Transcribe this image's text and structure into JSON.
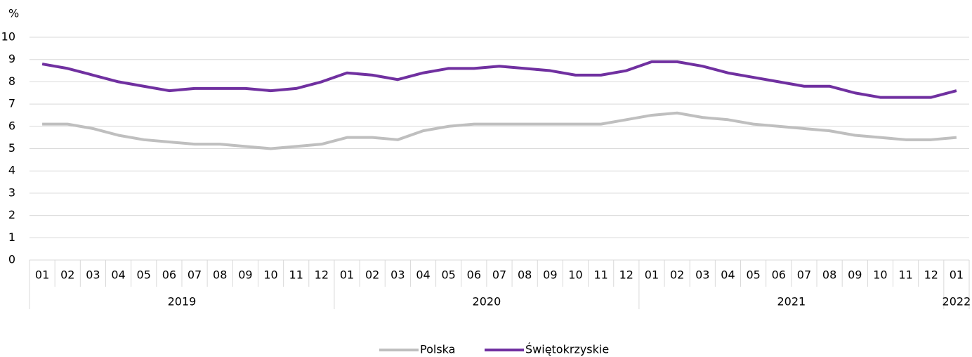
{
  "chart_data": {
    "type": "line",
    "ylabel": "%",
    "categories": [
      "01",
      "02",
      "03",
      "04",
      "05",
      "06",
      "07",
      "08",
      "09",
      "10",
      "11",
      "12",
      "01",
      "02",
      "03",
      "04",
      "05",
      "06",
      "07",
      "08",
      "09",
      "10",
      "11",
      "12",
      "01",
      "02",
      "03",
      "04",
      "05",
      "06",
      "07",
      "08",
      "09",
      "10",
      "11",
      "12",
      "01"
    ],
    "category_groups": [
      "2019",
      null,
      null,
      null,
      null,
      null,
      null,
      null,
      null,
      null,
      null,
      null,
      "2020",
      null,
      null,
      null,
      null,
      null,
      null,
      null,
      null,
      null,
      null,
      null,
      "2021",
      null,
      null,
      null,
      null,
      null,
      null,
      null,
      null,
      null,
      null,
      null,
      "2022"
    ],
    "series": [
      {
        "name": "Polska",
        "color": "#bfbfbf",
        "values": [
          6.1,
          6.1,
          5.9,
          5.6,
          5.4,
          5.3,
          5.2,
          5.2,
          5.1,
          5.0,
          5.1,
          5.2,
          5.5,
          5.5,
          5.4,
          5.8,
          6.0,
          6.1,
          6.1,
          6.1,
          6.1,
          6.1,
          6.1,
          6.3,
          6.5,
          6.6,
          6.4,
          6.3,
          6.1,
          6.0,
          5.9,
          5.8,
          5.6,
          5.5,
          5.4,
          5.4,
          5.5
        ]
      },
      {
        "name": "Świętokrzyskie",
        "color": "#7030a0",
        "values": [
          8.8,
          8.6,
          8.3,
          8.0,
          7.8,
          7.6,
          7.7,
          7.7,
          7.7,
          7.6,
          7.7,
          8.0,
          8.4,
          8.3,
          8.1,
          8.4,
          8.6,
          8.6,
          8.7,
          8.6,
          8.5,
          8.3,
          8.3,
          8.5,
          8.9,
          8.9,
          8.7,
          8.4,
          8.2,
          8.0,
          7.8,
          7.8,
          7.5,
          7.3,
          7.3,
          7.3,
          7.6
        ]
      }
    ],
    "ylim": [
      0,
      10
    ],
    "yticks": [
      0,
      1,
      2,
      3,
      4,
      5,
      6,
      7,
      8,
      9,
      10
    ],
    "grid": true,
    "legend": "bottom"
  }
}
